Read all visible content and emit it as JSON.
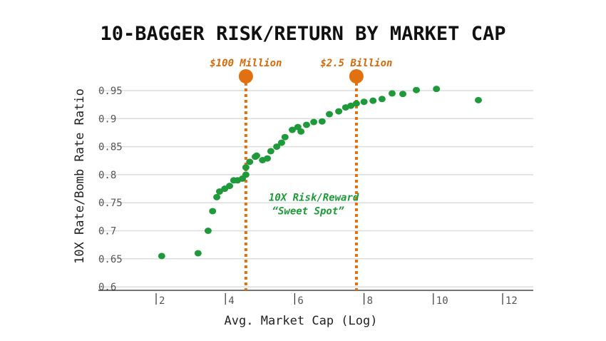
{
  "chart_data": {
    "type": "scatter",
    "title": "10-BAGGER RISK/RETURN BY MARKET CAP",
    "xlabel": "Avg. Market Cap (Log)",
    "ylabel": "10X Rate/Bomb Rate Ratio",
    "xlim": [
      0.35,
      12.9
    ],
    "ylim": [
      0.6,
      0.95
    ],
    "xticks": [
      2,
      4,
      6,
      8,
      10,
      12
    ],
    "xtick_labels": [
      "2",
      "4",
      "6",
      "8",
      "10",
      "12"
    ],
    "yticks": [
      0.6,
      0.65,
      0.7,
      0.75,
      0.8,
      0.85,
      0.9,
      0.95
    ],
    "ytick_labels": [
      "0.6",
      "0.65",
      "0.7",
      "0.75",
      "0.8",
      "0.85",
      "0.9",
      "0.95"
    ],
    "grid": "horizontal",
    "points": [
      [
        2.16,
        0.655
      ],
      [
        3.21,
        0.66
      ],
      [
        3.5,
        0.7
      ],
      [
        3.63,
        0.735
      ],
      [
        3.75,
        0.76
      ],
      [
        3.83,
        0.77
      ],
      [
        3.98,
        0.775
      ],
      [
        4.12,
        0.78
      ],
      [
        4.24,
        0.79
      ],
      [
        4.35,
        0.79
      ],
      [
        4.49,
        0.793
      ],
      [
        4.59,
        0.8
      ],
      [
        4.59,
        0.813
      ],
      [
        4.7,
        0.823
      ],
      [
        4.86,
        0.832
      ],
      [
        4.9,
        0.834
      ],
      [
        5.07,
        0.826
      ],
      [
        5.21,
        0.829
      ],
      [
        5.31,
        0.842
      ],
      [
        5.48,
        0.85
      ],
      [
        5.62,
        0.857
      ],
      [
        5.72,
        0.867
      ],
      [
        5.93,
        0.88
      ],
      [
        6.09,
        0.885
      ],
      [
        6.18,
        0.877
      ],
      [
        6.34,
        0.889
      ],
      [
        6.55,
        0.894
      ],
      [
        6.79,
        0.895
      ],
      [
        7.0,
        0.908
      ],
      [
        7.27,
        0.913
      ],
      [
        7.47,
        0.92
      ],
      [
        7.62,
        0.923
      ],
      [
        7.78,
        0.927
      ],
      [
        8.0,
        0.93
      ],
      [
        8.26,
        0.932
      ],
      [
        8.52,
        0.935
      ],
      [
        8.81,
        0.945
      ],
      [
        9.12,
        0.944
      ],
      [
        9.51,
        0.951
      ],
      [
        10.09,
        0.953
      ],
      [
        11.3,
        0.933
      ]
    ],
    "point_color": "#1e9a3a",
    "markers": [
      {
        "x": 4.59,
        "label": "$100 Million"
      },
      {
        "x": 7.78,
        "label": "$2.5 Billion"
      }
    ],
    "marker_color": "#e07010",
    "annotation": {
      "line1": "10X Risk/Reward",
      "line2": "“Sweet Spot”",
      "x": 6.2,
      "y": 0.77
    }
  }
}
